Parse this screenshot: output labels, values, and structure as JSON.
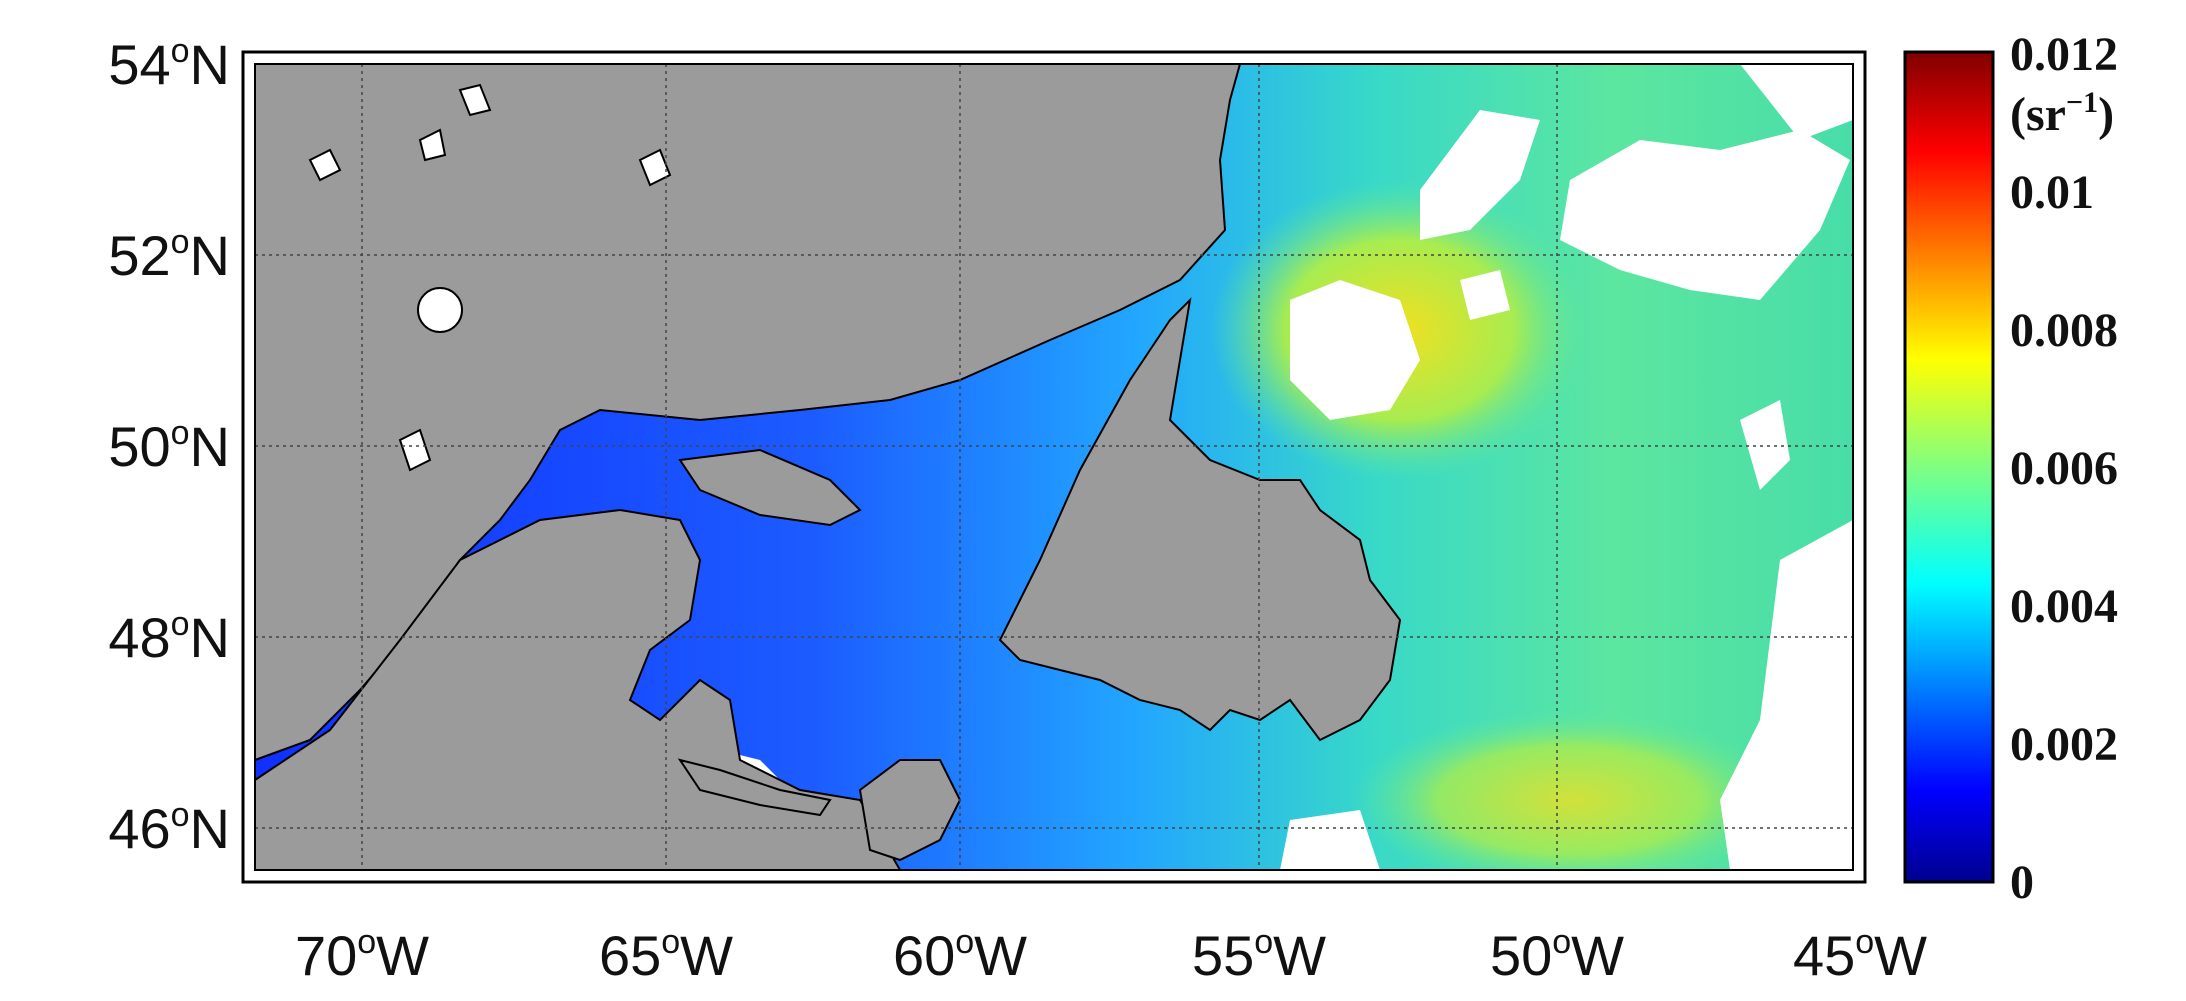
{
  "map": {
    "lat_ticks": [
      {
        "deg": "54",
        "hemi": "N"
      },
      {
        "deg": "52",
        "hemi": "N"
      },
      {
        "deg": "50",
        "hemi": "N"
      },
      {
        "deg": "48",
        "hemi": "N"
      },
      {
        "deg": "46",
        "hemi": "N"
      }
    ],
    "lon_ticks": [
      {
        "deg": "70",
        "hemi": "W"
      },
      {
        "deg": "65",
        "hemi": "W"
      },
      {
        "deg": "60",
        "hemi": "W"
      },
      {
        "deg": "55",
        "hemi": "W"
      },
      {
        "deg": "50",
        "hemi": "W"
      },
      {
        "deg": "45",
        "hemi": "W"
      }
    ],
    "extent": {
      "lon_min": -72,
      "lon_max": -45,
      "lat_min": 45.2,
      "lat_max": 54
    },
    "land_color": "#9b9b9b",
    "nodata_color": "#ffffff",
    "grid": true
  },
  "colorbar": {
    "unit_base": "(sr",
    "unit_exp": "−1",
    "unit_close": ")",
    "range": [
      0,
      0.012
    ],
    "ticks": [
      "0.012",
      "0.01",
      "0.008",
      "0.006",
      "0.004",
      "0.002",
      "0"
    ],
    "colormap": "jet",
    "colors": [
      "#00008f",
      "#0000ff",
      "#0080ff",
      "#00ffff",
      "#80ff80",
      "#ffff00",
      "#ff8000",
      "#ff0000",
      "#800000"
    ]
  }
}
